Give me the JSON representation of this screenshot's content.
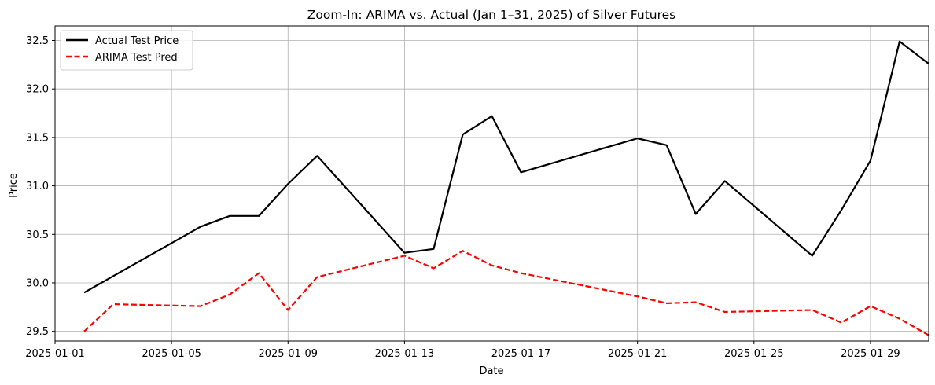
{
  "chart_data": {
    "type": "line",
    "title": "Zoom-In: ARIMA vs. Actual (Jan 1–31, 2025) of Silver Futures",
    "xlabel": "Date",
    "ylabel": "Price",
    "xlim": [
      "2025-01-01",
      "2025-01-31"
    ],
    "ylim": [
      29.4,
      32.65
    ],
    "x_ticks": [
      "2025-01-01",
      "2025-01-05",
      "2025-01-09",
      "2025-01-13",
      "2025-01-17",
      "2025-01-21",
      "2025-01-25",
      "2025-01-29"
    ],
    "y_ticks": [
      "29.5",
      "30.0",
      "30.5",
      "31.0",
      "31.5",
      "32.0",
      "32.5"
    ],
    "grid": true,
    "legend_position": "top-left",
    "series": [
      {
        "name": "Actual Test Price",
        "color": "#000000",
        "style": "solid",
        "points": [
          [
            "2025-01-02",
            29.9
          ],
          [
            "2025-01-06",
            30.58
          ],
          [
            "2025-01-07",
            30.69
          ],
          [
            "2025-01-08",
            30.69
          ],
          [
            "2025-01-09",
            31.02
          ],
          [
            "2025-01-10",
            31.31
          ],
          [
            "2025-01-13",
            30.31
          ],
          [
            "2025-01-14",
            30.35
          ],
          [
            "2025-01-15",
            31.53
          ],
          [
            "2025-01-16",
            31.72
          ],
          [
            "2025-01-17",
            31.14
          ],
          [
            "2025-01-21",
            31.49
          ],
          [
            "2025-01-22",
            31.42
          ],
          [
            "2025-01-23",
            30.71
          ],
          [
            "2025-01-24",
            31.05
          ],
          [
            "2025-01-27",
            30.28
          ],
          [
            "2025-01-28",
            30.75
          ],
          [
            "2025-01-29",
            31.26
          ],
          [
            "2025-01-30",
            32.49
          ],
          [
            "2025-01-31",
            32.26
          ]
        ]
      },
      {
        "name": "ARIMA Test Pred",
        "color": "#ff0000",
        "style": "dashed",
        "points": [
          [
            "2025-01-02",
            29.5
          ],
          [
            "2025-01-03",
            29.78
          ],
          [
            "2025-01-06",
            29.76
          ],
          [
            "2025-01-07",
            29.88
          ],
          [
            "2025-01-08",
            30.1
          ],
          [
            "2025-01-09",
            29.72
          ],
          [
            "2025-01-10",
            30.06
          ],
          [
            "2025-01-13",
            30.28
          ],
          [
            "2025-01-14",
            30.15
          ],
          [
            "2025-01-15",
            30.33
          ],
          [
            "2025-01-16",
            30.18
          ],
          [
            "2025-01-17",
            30.1
          ],
          [
            "2025-01-21",
            29.86
          ],
          [
            "2025-01-22",
            29.79
          ],
          [
            "2025-01-23",
            29.8
          ],
          [
            "2025-01-24",
            29.7
          ],
          [
            "2025-01-27",
            29.72
          ],
          [
            "2025-01-28",
            29.59
          ],
          [
            "2025-01-29",
            29.76
          ],
          [
            "2025-01-30",
            29.63
          ],
          [
            "2025-01-31",
            29.46
          ]
        ]
      }
    ]
  }
}
